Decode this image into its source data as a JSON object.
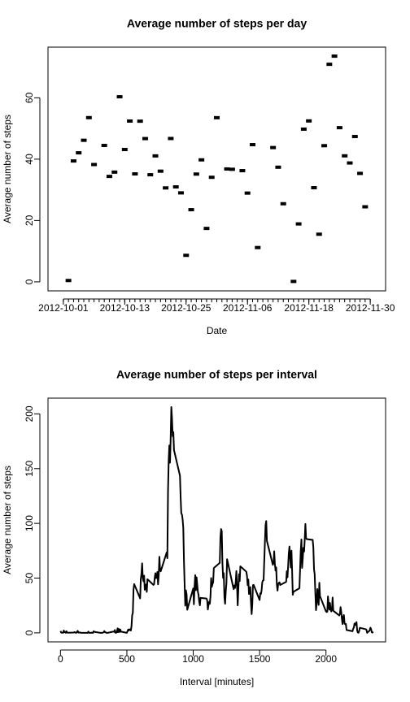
{
  "chart_data": [
    {
      "type": "scatter",
      "title": "Average number of steps per day",
      "x_label": "Date",
      "y_label": "Average number of steps",
      "color": "#000000",
      "x": [
        "2012-10-02",
        "2012-10-03",
        "2012-10-04",
        "2012-10-05",
        "2012-10-06",
        "2012-10-07",
        "2012-10-09",
        "2012-10-10",
        "2012-10-11",
        "2012-10-12",
        "2012-10-13",
        "2012-10-14",
        "2012-10-15",
        "2012-10-16",
        "2012-10-17",
        "2012-10-18",
        "2012-10-19",
        "2012-10-20",
        "2012-10-21",
        "2012-10-22",
        "2012-10-23",
        "2012-10-24",
        "2012-10-25",
        "2012-10-26",
        "2012-10-27",
        "2012-10-28",
        "2012-10-29",
        "2012-10-30",
        "2012-10-31",
        "2012-11-02",
        "2012-11-03",
        "2012-11-05",
        "2012-11-06",
        "2012-11-07",
        "2012-11-08",
        "2012-11-11",
        "2012-11-12",
        "2012-11-13",
        "2012-11-15",
        "2012-11-16",
        "2012-11-17",
        "2012-11-18",
        "2012-11-19",
        "2012-11-20",
        "2012-11-21",
        "2012-11-22",
        "2012-11-23",
        "2012-11-24",
        "2012-11-25",
        "2012-11-26",
        "2012-11-27",
        "2012-11-28",
        "2012-11-29"
      ],
      "values": [
        0.44,
        39.42,
        42.07,
        46.16,
        53.54,
        38.25,
        44.48,
        34.38,
        35.78,
        60.35,
        43.15,
        52.42,
        35.2,
        52.38,
        46.71,
        34.92,
        41.07,
        36.09,
        30.63,
        46.74,
        30.97,
        29.01,
        8.65,
        23.53,
        35.14,
        39.78,
        17.42,
        34.09,
        53.52,
        36.81,
        36.7,
        36.25,
        28.94,
        44.73,
        11.18,
        43.78,
        37.38,
        25.47,
        0.14,
        18.89,
        49.79,
        52.47,
        30.7,
        15.53,
        44.4,
        70.93,
        73.59,
        50.27,
        41.09,
        38.76,
        47.38,
        35.36,
        24.47
      ],
      "xlim": [
        "2012-09-28",
        "2012-12-03"
      ],
      "xticks": [
        "2012-10-01",
        "2012-10-13",
        "2012-10-25",
        "2012-11-06",
        "2012-11-18",
        "2012-11-30"
      ],
      "ylim": [
        -2.94,
        76.53
      ],
      "yticks": [
        0,
        20,
        40,
        60
      ]
    },
    {
      "type": "line",
      "title": "Average number of steps per interval",
      "x_label": "Interval [minutes]",
      "y_label": "Average number of steps",
      "color": "#000000",
      "x": [
        0,
        5,
        10,
        15,
        20,
        25,
        30,
        35,
        40,
        45,
        50,
        55,
        100,
        105,
        110,
        115,
        120,
        125,
        130,
        135,
        140,
        145,
        150,
        155,
        200,
        205,
        210,
        215,
        220,
        225,
        230,
        235,
        240,
        245,
        250,
        255,
        300,
        305,
        310,
        315,
        320,
        325,
        330,
        335,
        340,
        345,
        350,
        355,
        400,
        405,
        410,
        415,
        420,
        425,
        430,
        435,
        440,
        445,
        450,
        455,
        500,
        505,
        510,
        515,
        520,
        525,
        530,
        535,
        540,
        545,
        550,
        555,
        600,
        605,
        610,
        615,
        620,
        625,
        630,
        635,
        640,
        645,
        650,
        655,
        700,
        705,
        710,
        715,
        720,
        725,
        730,
        735,
        740,
        745,
        750,
        755,
        800,
        805,
        810,
        815,
        820,
        825,
        830,
        835,
        840,
        845,
        850,
        855,
        900,
        905,
        910,
        915,
        920,
        925,
        930,
        935,
        940,
        945,
        950,
        955,
        1000,
        1005,
        1010,
        1015,
        1020,
        1025,
        1030,
        1035,
        1040,
        1045,
        1050,
        1055,
        1100,
        1105,
        1110,
        1115,
        1120,
        1125,
        1130,
        1135,
        1140,
        1145,
        1150,
        1155,
        1200,
        1205,
        1210,
        1215,
        1220,
        1225,
        1230,
        1235,
        1240,
        1245,
        1250,
        1255,
        1300,
        1305,
        1310,
        1315,
        1320,
        1325,
        1330,
        1335,
        1340,
        1345,
        1350,
        1355,
        1400,
        1405,
        1410,
        1415,
        1420,
        1425,
        1430,
        1435,
        1440,
        1445,
        1450,
        1455,
        1500,
        1505,
        1510,
        1515,
        1520,
        1525,
        1530,
        1535,
        1540,
        1545,
        1550,
        1555,
        1600,
        1605,
        1610,
        1615,
        1620,
        1625,
        1630,
        1635,
        1640,
        1645,
        1650,
        1655,
        1700,
        1705,
        1710,
        1715,
        1720,
        1725,
        1730,
        1735,
        1740,
        1745,
        1750,
        1755,
        1800,
        1805,
        1810,
        1815,
        1820,
        1825,
        1830,
        1835,
        1840,
        1845,
        1850,
        1855,
        1900,
        1905,
        1910,
        1915,
        1920,
        1925,
        1930,
        1935,
        1940,
        1945,
        1950,
        1955,
        2000,
        2005,
        2010,
        2015,
        2020,
        2025,
        2030,
        2035,
        2040,
        2045,
        2050,
        2055,
        2100,
        2105,
        2110,
        2115,
        2120,
        2125,
        2130,
        2135,
        2140,
        2145,
        2150,
        2155,
        2200,
        2205,
        2210,
        2215,
        2220,
        2225,
        2230,
        2235,
        2240,
        2245,
        2250,
        2255,
        2300,
        2305,
        2310,
        2315,
        2320,
        2325,
        2330,
        2335,
        2340,
        2345,
        2350,
        2355
      ],
      "values": [
        1.7,
        0.3,
        0.1,
        0.2,
        0.1,
        2.1,
        0.5,
        0.9,
        0,
        1.5,
        0.3,
        0.1,
        0.3,
        0.7,
        0.2,
        0.3,
        0,
        1.1,
        1.8,
        0.2,
        0.2,
        0.4,
        0.3,
        0,
        0,
        0,
        1.1,
        0,
        0,
        0.1,
        0,
        0.2,
        0,
        0,
        1.5,
        0.9,
        0,
        0,
        0,
        0,
        0.2,
        0.6,
        1.6,
        0.6,
        0.5,
        0.1,
        0,
        0,
        1.2,
        0.9,
        2.6,
        0,
        0.3,
        0.4,
        4.1,
        0.7,
        3.5,
        0.8,
        3.1,
        1.1,
        0,
        1.6,
        3,
        2.2,
        3.2,
        3,
        2.1,
        6.1,
        16,
        18.3,
        39.5,
        44.5,
        31.5,
        49.3,
        53.8,
        63.5,
        50,
        47.1,
        52.2,
        39.3,
        44,
        44.2,
        37.4,
        49,
        43.8,
        44.4,
        50.5,
        54.5,
        49.9,
        50.9,
        55.7,
        44.3,
        52.3,
        69.5,
        57.8,
        56.2,
        73.4,
        68.2,
        129.4,
        157.5,
        171.2,
        155.4,
        177.3,
        206.2,
        195.9,
        179.6,
        183.4,
        167,
        143.5,
        124,
        109.1,
        108.1,
        103.7,
        96,
        66.2,
        45.2,
        24.8,
        38.8,
        35,
        21.1,
        40.6,
        26.1,
        42.4,
        52.7,
        38.9,
        50.8,
        44.3,
        37.4,
        34.7,
        28.3,
        25.1,
        31.9,
        31.4,
        29.7,
        21.3,
        25.5,
        28.4,
        26.5,
        33.4,
        50,
        42,
        44.6,
        46,
        59.2,
        63.9,
        87.7,
        94.8,
        92.8,
        63.4,
        50.2,
        54.5,
        32.4,
        26.5,
        37.7,
        45.1,
        67.3,
        42.3,
        39.9,
        43.3,
        41,
        46.2,
        56.4,
        42.8,
        25.1,
        40,
        53.5,
        47.3,
        60.8,
        55.8,
        52,
        43.6,
        48.7,
        35.5,
        37.5,
        41.8,
        27.5,
        17.1,
        26.1,
        43.6,
        43.8,
        30,
        36.1,
        35.5,
        38.8,
        46,
        47.8,
        48.1,
        65.3,
        82.9,
        98.7,
        102.1,
        84,
        62.1,
        64.1,
        74.5,
        63.2,
        56.9,
        59.8,
        43.9,
        38.6,
        44.7,
        45.5,
        46.2,
        43.7,
        46.6,
        56.3,
        50.7,
        61.2,
        72.7,
        78.9,
        68.9,
        59.7,
        75.1,
        56.5,
        34.8,
        37.5,
        40.7,
        58,
        74.7,
        85.3,
        59.3,
        67.8,
        77.7,
        74.2,
        85.3,
        99.5,
        86.6,
        85.6,
        84.9,
        77.8,
        58,
        53.4,
        36.3,
        20.7,
        27.4,
        40,
        30.2,
        25.5,
        45.7,
        33.5,
        19.6,
        19,
        19.3,
        33.3,
        26.8,
        21.2,
        27.3,
        21.3,
        19.5,
        21.3,
        32.3,
        20.2,
        15.9,
        17.2,
        23.5,
        19.2,
        12.5,
        8,
        14.7,
        16.3,
        8.7,
        7.8,
        8.1,
        2.6,
        1.5,
        3.7,
        4.8,
        8.5,
        7.1,
        8.7,
        9.8,
        2.2,
        0.3,
        0.1,
        1.6,
        4.6,
        3.3,
        2.8,
        0,
        0.8,
        1,
        1.6,
        2.6,
        4.7,
        3.3,
        0.6,
        0.2,
        1.1
      ],
      "xlim": [
        -94.2,
        2449.2
      ],
      "xticks": [
        0,
        500,
        1000,
        1500,
        2000
      ],
      "ylim": [
        -8.25,
        214.4
      ],
      "yticks": [
        0,
        50,
        100,
        150,
        200
      ]
    }
  ]
}
